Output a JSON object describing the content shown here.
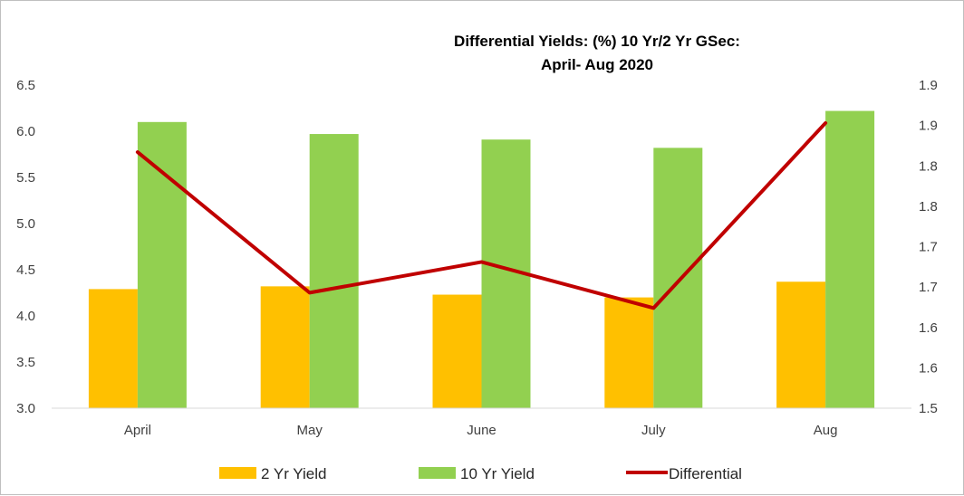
{
  "chart_data": {
    "type": "bar",
    "title": "Differential Yields: (%) 10 Yr/2 Yr GSec:",
    "subtitle": "April- Aug 2020",
    "categories": [
      "April",
      "May",
      "June",
      "July",
      "Aug"
    ],
    "series": [
      {
        "name": "2 Yr Yield",
        "type": "bar",
        "axis": "left",
        "color": "#FFC000",
        "values": [
          4.29,
          4.32,
          4.23,
          4.2,
          4.37
        ]
      },
      {
        "name": "10 Yr Yield",
        "type": "bar",
        "axis": "left",
        "color": "#92D050",
        "values": [
          6.1,
          5.97,
          5.91,
          5.82,
          6.22
        ]
      }
    ],
    "line_series": [
      {
        "name": "Differential",
        "type": "line",
        "axis": "right",
        "color": "#C00000",
        "values": [
          1.817,
          1.643,
          1.681,
          1.624,
          1.853
        ]
      }
    ],
    "y_left": {
      "ylim": [
        3.0,
        6.5
      ],
      "ticks": [
        "3.0",
        "3.5",
        "4.0",
        "4.5",
        "5.0",
        "5.5",
        "6.0",
        "6.5"
      ],
      "tick_values": [
        3.0,
        3.5,
        4.0,
        4.5,
        5.0,
        5.5,
        6.0,
        6.5
      ]
    },
    "y_right": {
      "ylim": [
        1.5,
        1.9
      ],
      "ticks": [
        "1.5",
        "1.6",
        "1.6",
        "1.7",
        "1.7",
        "1.8",
        "1.8",
        "1.9",
        "1.9"
      ],
      "tick_values": [
        1.5,
        1.55,
        1.6,
        1.65,
        1.7,
        1.75,
        1.8,
        1.85,
        1.9
      ]
    },
    "xlabel": "",
    "ylabel": "",
    "grid": false,
    "legend_position": "bottom"
  }
}
